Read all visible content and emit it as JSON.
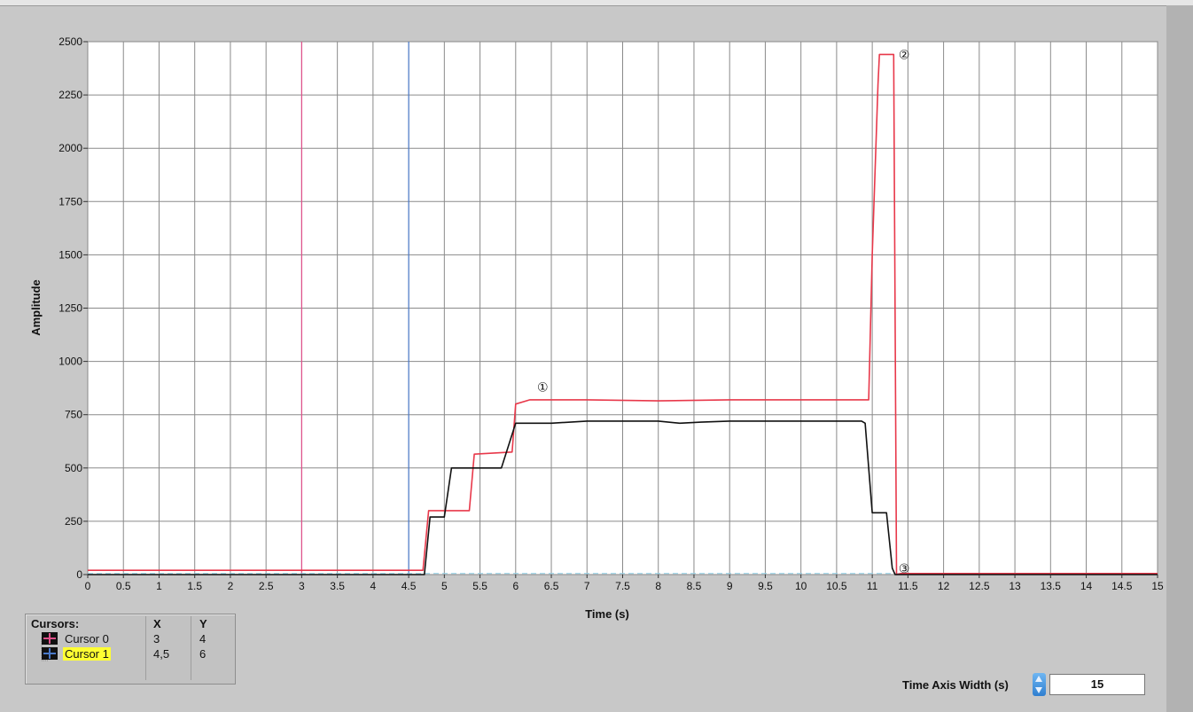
{
  "chart_data": {
    "type": "line",
    "title": "",
    "xlabel": "Time (s)",
    "ylabel": "Amplitude",
    "xlim": [
      0,
      15
    ],
    "ylim": [
      0,
      2500
    ],
    "grid": true,
    "x_ticks": [
      "0",
      "0.5",
      "1",
      "1.5",
      "2",
      "2.5",
      "3",
      "3.5",
      "4",
      "4.5",
      "5",
      "5.5",
      "6",
      "6.5",
      "7",
      "7.5",
      "8",
      "8.5",
      "9",
      "9.5",
      "10",
      "10.5",
      "11",
      "11.5",
      "12",
      "12.5",
      "13",
      "13.5",
      "14",
      "14.5",
      "15"
    ],
    "y_ticks": [
      "0",
      "250",
      "500",
      "750",
      "1000",
      "1250",
      "1500",
      "1750",
      "2000",
      "2250",
      "2500"
    ],
    "series": [
      {
        "color": "#e8384a",
        "x": [
          0,
          4.7,
          4.78,
          4.98,
          5.05,
          5.35,
          5.42,
          5.95,
          6.0,
          6.2,
          7.0,
          8.0,
          9.0,
          10.5,
          10.9,
          10.95,
          11.0,
          11.08,
          11.1,
          11.3,
          11.34,
          11.4,
          15
        ],
        "y": [
          20,
          20,
          300,
          300,
          300,
          300,
          565,
          575,
          800,
          820,
          820,
          815,
          820,
          820,
          820,
          820,
          1500,
          2300,
          2440,
          2440,
          0,
          5,
          5
        ]
      },
      {
        "color": "#111111",
        "x": [
          0,
          4.6,
          4.72,
          4.8,
          5.0,
          5.1,
          5.75,
          5.8,
          6.0,
          6.5,
          7.0,
          8.0,
          8.3,
          8.6,
          9.0,
          10.0,
          10.85,
          10.9,
          11.0,
          11.2,
          11.28,
          11.32,
          15
        ],
        "y": [
          0,
          0,
          0,
          270,
          270,
          500,
          500,
          500,
          710,
          710,
          720,
          720,
          710,
          715,
          720,
          720,
          720,
          710,
          290,
          290,
          30,
          0,
          0
        ]
      }
    ],
    "cursors": [
      {
        "x": 3,
        "color": "#e0508a"
      },
      {
        "x": 4.5,
        "color": "#4a79c9"
      }
    ],
    "annotations": [
      {
        "text": "①",
        "x": 6.3,
        "y": 880
      },
      {
        "text": "②",
        "x": 11.37,
        "y": 2440
      },
      {
        "text": "③",
        "x": 11.37,
        "y": 30
      }
    ]
  },
  "cursor_legend": {
    "header": "Cursors:",
    "col_x": "X",
    "col_y": "Y",
    "rows": [
      {
        "name": "Cursor 0",
        "x": "3",
        "y": "4"
      },
      {
        "name": "Cursor 1",
        "x": "4,5",
        "y": "6"
      }
    ]
  },
  "time_axis_width": {
    "label": "Time Axis Width (s)",
    "value": "15"
  }
}
